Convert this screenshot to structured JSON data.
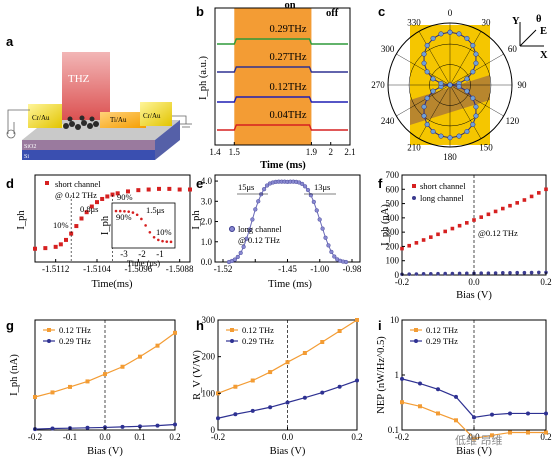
{
  "panel_letters": [
    "a",
    "b",
    "c",
    "d",
    "e",
    "f",
    "g",
    "h",
    "i"
  ],
  "device": {
    "thz_label": "THZ",
    "electrodes": [
      "Cr/Au",
      "Ti/Au",
      "Cr/Au"
    ],
    "substrate": [
      "SiO2",
      "Si"
    ]
  },
  "watermark": "低维 昂维",
  "colors": {
    "red": "#d62020",
    "orange": "#f39c34",
    "navy": "#2e3192",
    "green": "#2e9a3a",
    "purple": "#3b3b8f",
    "blue": "#1f1fb4",
    "gold": "#f5c600"
  },
  "chart_data": [
    {
      "id": "b",
      "type": "line",
      "xlabel": "Time (ms)",
      "ylabel": "I_ph (a.u.)",
      "xticks": [
        1.4,
        1.5,
        1.9,
        2.0,
        2.1
      ],
      "xlim": [
        1.4,
        2.1
      ],
      "on_label": "on",
      "off_label": "off",
      "on_window": [
        1.5,
        1.9
      ],
      "series": [
        {
          "name": "0.29THz",
          "color": "green",
          "offset": 4,
          "step": 0.45
        },
        {
          "name": "0.27THz",
          "color": "navy",
          "offset": 3,
          "step": 0.45
        },
        {
          "name": "0.12THz",
          "color": "blue",
          "offset": 2,
          "step": 0.45
        },
        {
          "name": "0.04THz",
          "color": "red",
          "offset": 1,
          "step": 0.45
        }
      ]
    },
    {
      "id": "c",
      "type": "polar",
      "angles": [
        "0",
        "30",
        "60",
        "90",
        "120",
        "150",
        "180",
        "210",
        "240",
        "270",
        "300",
        "330"
      ],
      "axis_labels": {
        "y": "Y",
        "x": "X",
        "theta": "θ",
        "e": "E"
      }
    },
    {
      "id": "d",
      "type": "scatter",
      "xlabel": "Time(ms)",
      "ylabel": "I_ph",
      "xticks": [
        -1.5112,
        -1.5104,
        -1.5096,
        -1.5088
      ],
      "xlim": [
        -1.5116,
        -1.5086
      ],
      "legend": [
        "short channel",
        "@ 0.12 THz"
      ],
      "annotations": [
        "10%",
        "0.8μs",
        "90%"
      ],
      "inset": {
        "xlabel": "Time (μs)",
        "xticks": [
          -3,
          -2,
          -1
        ],
        "annotations": [
          "90%",
          "1.5μs",
          "10%"
        ],
        "ylabel": "I_ph"
      },
      "rise_x": [
        -1.5116,
        -1.5114,
        -1.5112,
        -1.5111,
        -1.511,
        -1.5109,
        -1.5108,
        -1.5107,
        -1.5106,
        -1.5105,
        -1.5104,
        -1.5103,
        -1.5102,
        -1.5101,
        -1.51,
        -1.5098,
        -1.5096,
        -1.5094,
        -1.5092,
        -1.509,
        -1.5088,
        -1.5086
      ],
      "rise_y": [
        0.02,
        0.03,
        0.05,
        0.09,
        0.16,
        0.26,
        0.38,
        0.5,
        0.6,
        0.69,
        0.76,
        0.81,
        0.85,
        0.88,
        0.9,
        0.93,
        0.95,
        0.96,
        0.97,
        0.97,
        0.96,
        0.96
      ]
    },
    {
      "id": "e",
      "type": "scatter",
      "xlabel": "Time (ms)",
      "ylabel": "I_ph",
      "xticks": [
        -1.52,
        -1.5,
        -1.45,
        -1.0,
        -0.98
      ],
      "tick_labels": [
        "-1.52",
        "",
        "-1.45",
        "-1.00",
        "-0.98"
      ],
      "yticks": [
        0.0,
        1.0,
        2.0,
        3.0,
        4.0
      ],
      "ylim": [
        0,
        4.3
      ],
      "legend": [
        "long channel",
        "@ 0.12 THz"
      ],
      "annotations": [
        "15μs",
        "13μs"
      ],
      "y": [
        0.0,
        0.05,
        0.12,
        0.25,
        0.45,
        0.75,
        1.15,
        1.6,
        2.1,
        2.6,
        3.0,
        3.35,
        3.6,
        3.78,
        3.88,
        3.93,
        3.96,
        3.97,
        3.97,
        3.97,
        3.96,
        3.97,
        3.97,
        3.96,
        3.93,
        3.86,
        3.74,
        3.56,
        3.3,
        2.97,
        2.55,
        2.1,
        1.65,
        1.2,
        0.82,
        0.5,
        0.27,
        0.13,
        0.06,
        0.02,
        0.0
      ]
    },
    {
      "id": "f",
      "type": "scatter",
      "xlabel": "Bias (V)",
      "ylabel": "I_ph (nA)",
      "xticks": [
        -0.2,
        0.0,
        0.2
      ],
      "xlim": [
        -0.2,
        0.2
      ],
      "yticks": [
        0,
        100,
        200,
        300,
        400,
        500,
        600,
        700
      ],
      "ylim": [
        0,
        700
      ],
      "annotation": "@0.12 THz",
      "x": [
        -0.2,
        -0.18,
        -0.16,
        -0.14,
        -0.12,
        -0.1,
        -0.08,
        -0.06,
        -0.04,
        -0.02,
        0.0,
        0.02,
        0.04,
        0.06,
        0.08,
        0.1,
        0.12,
        0.14,
        0.16,
        0.18,
        0.2
      ],
      "series": [
        {
          "name": "short channel",
          "color": "red",
          "values": [
            185,
            205,
            225,
            245,
            265,
            285,
            305,
            325,
            345,
            365,
            385,
            405,
            425,
            445,
            465,
            485,
            505,
            525,
            550,
            575,
            600
          ]
        },
        {
          "name": "long channel",
          "color": "purple",
          "values": [
            5,
            6,
            7,
            8,
            8,
            9,
            10,
            10,
            11,
            12,
            12,
            13,
            13,
            14,
            15,
            15,
            16,
            16,
            17,
            18,
            18
          ]
        }
      ]
    },
    {
      "id": "g",
      "type": "line",
      "xlabel": "Bias (V)",
      "ylabel": "I_ph (nA)",
      "xticks": [
        -0.2,
        -0.1,
        0.0,
        0.1,
        0.2
      ],
      "xlim": [
        -0.2,
        0.2
      ],
      "ylim": [
        0,
        600
      ],
      "x": [
        -0.2,
        -0.15,
        -0.1,
        -0.05,
        0.0,
        0.05,
        0.1,
        0.15,
        0.2
      ],
      "series": [
        {
          "name": "0.12 THz",
          "color": "orange",
          "values": [
            180,
            205,
            235,
            265,
            305,
            345,
            400,
            460,
            530
          ]
        },
        {
          "name": "0.29 THz",
          "color": "navy",
          "values": [
            5,
            8,
            10,
            12,
            14,
            17,
            20,
            24,
            30
          ]
        }
      ]
    },
    {
      "id": "h",
      "type": "line",
      "xlabel": "Bias (V)",
      "ylabel": "R_V (V/W)",
      "xticks": [
        -0.2,
        0.0,
        0.2
      ],
      "xlim": [
        -0.2,
        0.2
      ],
      "yticks": [
        0,
        100,
        200,
        300
      ],
      "ylim": [
        0,
        300
      ],
      "x": [
        -0.2,
        -0.15,
        -0.1,
        -0.05,
        0.0,
        0.05,
        0.1,
        0.15,
        0.2
      ],
      "series": [
        {
          "name": "0.12 THz",
          "color": "orange",
          "values": [
            100,
            118,
            135,
            158,
            185,
            210,
            240,
            270,
            300
          ]
        },
        {
          "name": "0.29 THz",
          "color": "navy",
          "values": [
            32,
            43,
            52,
            62,
            75,
            88,
            102,
            118,
            135
          ]
        }
      ]
    },
    {
      "id": "i",
      "type": "line",
      "xlabel": "Bias (V)",
      "ylabel": "NEP (nW/Hz^0.5)",
      "xticks": [
        -0.2,
        0.0,
        0.2
      ],
      "xlim": [
        -0.2,
        0.2
      ],
      "yticks": [
        0.1,
        1,
        10
      ],
      "yscale": "log",
      "ylim": [
        0.1,
        10
      ],
      "x": [
        -0.2,
        -0.15,
        -0.1,
        -0.05,
        0.0,
        0.05,
        0.1,
        0.15,
        0.2
      ],
      "series": [
        {
          "name": "0.12 THz",
          "color": "orange",
          "values": [
            0.32,
            0.27,
            0.2,
            0.15,
            0.07,
            0.08,
            0.09,
            0.09,
            0.09
          ]
        },
        {
          "name": "0.29 THz",
          "color": "navy",
          "values": [
            0.85,
            0.7,
            0.55,
            0.4,
            0.17,
            0.19,
            0.2,
            0.2,
            0.2
          ]
        }
      ]
    }
  ]
}
